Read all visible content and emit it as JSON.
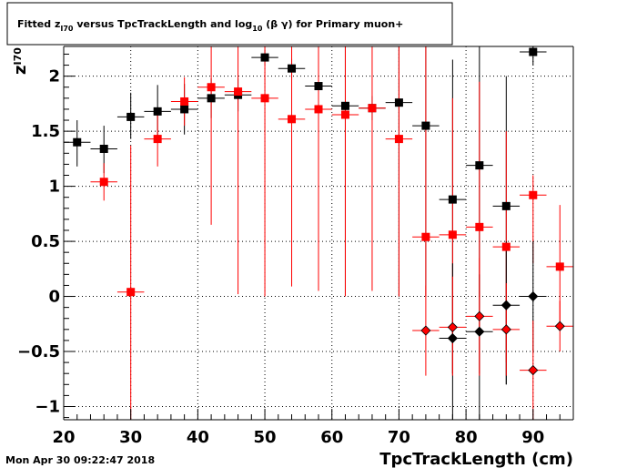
{
  "header": {
    "title_prefix": "Fitted  z",
    "title_sub": "I70",
    "title_mid": "  versus TpcTrackLength and log",
    "title_sub2": "10",
    "title_suffix": " (β γ) for Primary muon+"
  },
  "footer": {
    "timestamp": "Mon Apr 30 09:22:47 2018"
  },
  "chart_data": {
    "type": "scatter",
    "title": "Fitted  zI70  versus TpcTrackLength and log10 (β γ) for Primary muon+",
    "xlabel": "TpcTrackLength (cm)",
    "ylabel_main": "z",
    "ylabel_sub": "I70",
    "xlim": [
      20,
      96
    ],
    "ylim": [
      -1.12,
      2.27
    ],
    "x_ticks": [
      20,
      30,
      40,
      50,
      60,
      70,
      80,
      90
    ],
    "x_tick_labels": [
      "20",
      "30",
      "40",
      "50",
      "60",
      "70",
      "80",
      "90"
    ],
    "y_ticks": [
      -1,
      -0.5,
      0,
      0.5,
      1,
      1.5,
      2
    ],
    "y_tick_labels": [
      "−1",
      "−0.5",
      "0",
      "0.5",
      "1",
      "1.5",
      "2"
    ],
    "grid": true,
    "series": [
      {
        "marker": "square",
        "color": "#000000",
        "points": [
          {
            "x": 22,
            "y": 1.4,
            "xerr": 2,
            "ylo": 1.18,
            "yhi": 1.6
          },
          {
            "x": 26,
            "y": 1.34,
            "xerr": 2,
            "ylo": 1.12,
            "yhi": 1.55
          },
          {
            "x": 30,
            "y": 1.63,
            "xerr": 2,
            "ylo": 1.43,
            "yhi": 1.85
          },
          {
            "x": 34,
            "y": 1.68,
            "xerr": 2,
            "ylo": 1.45,
            "yhi": 1.92
          },
          {
            "x": 38,
            "y": 1.7,
            "xerr": 2,
            "ylo": 1.47,
            "yhi": 1.93
          },
          {
            "x": 42,
            "y": 1.8,
            "xerr": 2,
            "ylo": 1.62,
            "yhi": 1.98
          },
          {
            "x": 46,
            "y": 1.83,
            "xerr": 2,
            "ylo": 1.68,
            "yhi": 1.98
          },
          {
            "x": 50,
            "y": 2.17,
            "xerr": 2,
            "ylo": 2.1,
            "yhi": 2.24
          },
          {
            "x": 54,
            "y": 2.07,
            "xerr": 2,
            "ylo": 1.98,
            "yhi": 2.16
          },
          {
            "x": 58,
            "y": 1.91,
            "xerr": 2,
            "ylo": 1.8,
            "yhi": 2.02
          },
          {
            "x": 62,
            "y": 1.73,
            "xerr": 2,
            "ylo": 0.0,
            "yhi": 2.27
          },
          {
            "x": 66,
            "y": 1.71,
            "xerr": 2,
            "ylo": 1.6,
            "yhi": 1.82
          },
          {
            "x": 70,
            "y": 1.76,
            "xerr": 2,
            "ylo": 0.0,
            "yhi": 2.27
          },
          {
            "x": 74,
            "y": 1.55,
            "xerr": 2,
            "ylo": 0.0,
            "yhi": 2.27
          },
          {
            "x": 78,
            "y": 0.88,
            "xerr": 2,
            "ylo": -0.7,
            "yhi": 2.15
          },
          {
            "x": 82,
            "y": 1.19,
            "xerr": 2,
            "ylo": 0.0,
            "yhi": 2.27
          },
          {
            "x": 86,
            "y": 0.82,
            "xerr": 2,
            "ylo": -0.8,
            "yhi": 2.0
          },
          {
            "x": 90,
            "y": 2.22,
            "xerr": 2,
            "ylo": 2.1,
            "yhi": 2.27
          }
        ]
      },
      {
        "marker": "square",
        "color": "#ff0000",
        "points": [
          {
            "x": 26,
            "y": 1.04,
            "xerr": 2,
            "ylo": 0.87,
            "yhi": 1.21
          },
          {
            "x": 30,
            "y": 0.04,
            "xerr": 2,
            "ylo": -1.12,
            "yhi": 1.37
          },
          {
            "x": 34,
            "y": 1.43,
            "xerr": 2,
            "ylo": 1.18,
            "yhi": 1.68
          },
          {
            "x": 38,
            "y": 1.77,
            "xerr": 2,
            "ylo": 1.55,
            "yhi": 1.99
          },
          {
            "x": 42,
            "y": 1.9,
            "xerr": 2,
            "ylo": 0.65,
            "yhi": 2.27
          },
          {
            "x": 46,
            "y": 1.86,
            "xerr": 2,
            "ylo": 0.02,
            "yhi": 2.27
          },
          {
            "x": 50,
            "y": 1.8,
            "xerr": 2,
            "ylo": 0.0,
            "yhi": 2.27
          },
          {
            "x": 54,
            "y": 1.61,
            "xerr": 2,
            "ylo": 0.09,
            "yhi": 2.27
          },
          {
            "x": 58,
            "y": 1.7,
            "xerr": 2,
            "ylo": 0.05,
            "yhi": 2.27
          },
          {
            "x": 62,
            "y": 1.65,
            "xerr": 2,
            "ylo": 0.0,
            "yhi": 2.27
          },
          {
            "x": 66,
            "y": 1.71,
            "xerr": 2,
            "ylo": 0.05,
            "yhi": 2.27
          },
          {
            "x": 70,
            "y": 1.43,
            "xerr": 2,
            "ylo": 0.0,
            "yhi": 2.27
          },
          {
            "x": 74,
            "y": 0.54,
            "xerr": 2,
            "ylo": 0.0,
            "yhi": 2.27
          },
          {
            "x": 78,
            "y": 0.56,
            "xerr": 2,
            "ylo": -0.7,
            "yhi": 1.8
          },
          {
            "x": 82,
            "y": 0.63,
            "xerr": 2,
            "ylo": -0.7,
            "yhi": 1.95
          },
          {
            "x": 86,
            "y": 0.45,
            "xerr": 2,
            "ylo": -0.6,
            "yhi": 1.5
          },
          {
            "x": 90,
            "y": 0.92,
            "xerr": 2,
            "ylo": 0.3,
            "yhi": 1.1
          },
          {
            "x": 94,
            "y": 0.27,
            "xerr": 2,
            "ylo": -0.3,
            "yhi": 0.83
          }
        ]
      },
      {
        "marker": "diamond",
        "color": "#000000",
        "points": [
          {
            "x": 78,
            "y": -0.38,
            "xerr": 2,
            "ylo": -1.12,
            "yhi": 0.3
          },
          {
            "x": 82,
            "y": -0.32,
            "xerr": 2,
            "ylo": -1.12,
            "yhi": 0.2
          },
          {
            "x": 86,
            "y": -0.08,
            "xerr": 2,
            "ylo": -0.8,
            "yhi": 0.5
          },
          {
            "x": 90,
            "y": 0.0,
            "xerr": 2,
            "ylo": -0.5,
            "yhi": 0.5
          }
        ]
      },
      {
        "marker": "diamond",
        "color": "#ff0000",
        "points": [
          {
            "x": 74,
            "y": -0.31,
            "xerr": 2,
            "ylo": -0.72,
            "yhi": 0.1
          },
          {
            "x": 78,
            "y": -0.28,
            "xerr": 2,
            "ylo": -0.72,
            "yhi": 0.18
          },
          {
            "x": 82,
            "y": -0.18,
            "xerr": 2,
            "ylo": -0.72,
            "yhi": 0.35
          },
          {
            "x": 86,
            "y": -0.3,
            "xerr": 2,
            "ylo": -0.72,
            "yhi": 0.12
          },
          {
            "x": 90,
            "y": -0.67,
            "xerr": 2,
            "ylo": -1.12,
            "yhi": -0.22
          },
          {
            "x": 94,
            "y": -0.27,
            "xerr": 2,
            "ylo": -0.5,
            "yhi": -0.04
          }
        ]
      }
    ]
  }
}
